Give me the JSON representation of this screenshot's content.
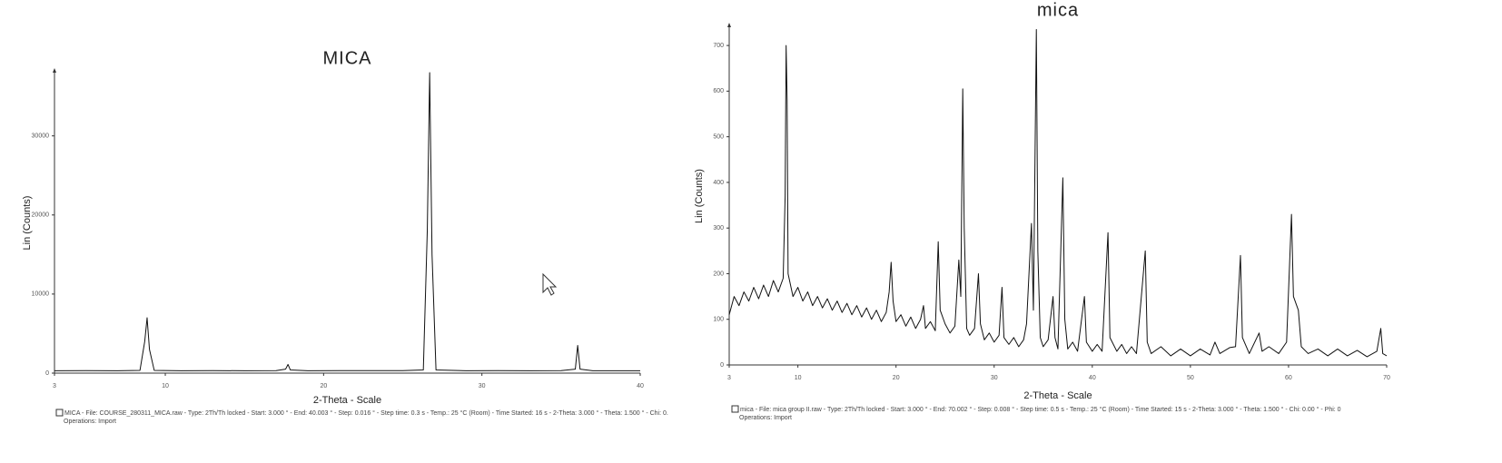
{
  "chart_data": [
    {
      "type": "line",
      "title": "MICA",
      "x_label": "2-Theta - Scale",
      "y_label": "Lin (Counts)",
      "caption": [
        "MICA - File: COURSE_280311_MICA.raw - Type: 2Th/Th locked - Start: 3.000 ° - End: 40.003 ° - Step: 0.016 ° - Step time: 0.3 s - Temp.: 25 °C (Room) - Time Started: 16 s - 2-Theta: 3.000 ° - Theta: 1.500 ° - Chi: 0.",
        "Operations: Import"
      ],
      "xlim": [
        3,
        40
      ],
      "xticks": [
        3,
        10,
        20,
        30,
        40
      ],
      "ylim": [
        0,
        38000
      ],
      "yticks": [
        0,
        10000,
        20000,
        30000
      ],
      "color": "#111111",
      "x": [
        3,
        5,
        7,
        8.4,
        8.7,
        8.85,
        9.0,
        9.3,
        11,
        13,
        15,
        17,
        17.6,
        17.75,
        17.9,
        19,
        21,
        23,
        25,
        26.3,
        26.55,
        26.7,
        26.85,
        27.1,
        29,
        31,
        33,
        35,
        35.9,
        36.05,
        36.2,
        37,
        39,
        40
      ],
      "values": [
        300,
        320,
        300,
        350,
        4000,
        7000,
        3000,
        350,
        300,
        320,
        300,
        320,
        500,
        1100,
        400,
        300,
        320,
        310,
        320,
        400,
        18000,
        38000,
        15000,
        400,
        300,
        320,
        300,
        310,
        500,
        3500,
        500,
        300,
        300,
        300
      ]
    },
    {
      "type": "line",
      "title": "mica",
      "x_label": "2-Theta - Scale",
      "y_label": "Lin (Counts)",
      "caption": [
        "mica - File: mica group II.raw - Type: 2Th/Th locked - Start: 3.000 ° - End: 70.002 ° - Step: 0.008 ° - Step time: 0.5 s - Temp.: 25 °C (Room) - Time Started: 15 s - 2-Theta: 3.000 ° - Theta: 1.500 ° - Chi: 0.00 ° - Phi: 0",
        "Operations: Import"
      ],
      "xlim": [
        3,
        70
      ],
      "xticks": [
        3,
        10,
        20,
        30,
        40,
        50,
        60,
        70
      ],
      "ylim": [
        0,
        740
      ],
      "yticks": [
        0,
        100,
        200,
        300,
        400,
        500,
        600,
        700
      ],
      "color": "#111111",
      "x": [
        3,
        3.5,
        4,
        4.5,
        5,
        5.5,
        6,
        6.5,
        7,
        7.5,
        8,
        8.5,
        8.7,
        8.8,
        8.9,
        9.0,
        9.5,
        10,
        10.5,
        11,
        11.5,
        12,
        12.5,
        13,
        13.5,
        14,
        14.5,
        15,
        15.5,
        16,
        16.5,
        17,
        17.5,
        18,
        18.5,
        19,
        19.3,
        19.5,
        19.7,
        20,
        20.5,
        21,
        21.5,
        22,
        22.5,
        22.8,
        23,
        23.5,
        24,
        24.3,
        24.5,
        25,
        25.5,
        26,
        26.4,
        26.6,
        26.8,
        26.95,
        27.2,
        27.5,
        28,
        28.4,
        28.6,
        29,
        29.5,
        30,
        30.5,
        30.8,
        31,
        31.5,
        32,
        32.5,
        33,
        33.3,
        33.8,
        34.0,
        34.3,
        34.45,
        34.7,
        35,
        35.5,
        36,
        36.2,
        36.5,
        37.0,
        37.2,
        37.5,
        38,
        38.5,
        39.2,
        39.4,
        40,
        40.5,
        41,
        41.6,
        41.8,
        42.5,
        43,
        43.5,
        44,
        44.5,
        45.4,
        45.6,
        46,
        47,
        48,
        49,
        50,
        51,
        52,
        52.5,
        53,
        54,
        54.6,
        55.1,
        55.3,
        56,
        57,
        57.3,
        58,
        59,
        59.8,
        60.3,
        60.5,
        61.0,
        61.3,
        62,
        63,
        64,
        65,
        66,
        67,
        68,
        69,
        69.4,
        69.6,
        70
      ],
      "values": [
        110,
        150,
        130,
        160,
        140,
        170,
        145,
        175,
        150,
        185,
        160,
        190,
        370,
        700,
        580,
        200,
        150,
        170,
        140,
        160,
        130,
        150,
        125,
        145,
        120,
        140,
        115,
        135,
        110,
        130,
        105,
        125,
        100,
        120,
        95,
        115,
        160,
        225,
        140,
        95,
        110,
        85,
        105,
        80,
        100,
        130,
        80,
        95,
        75,
        270,
        120,
        90,
        70,
        85,
        230,
        150,
        605,
        300,
        80,
        65,
        80,
        200,
        90,
        55,
        70,
        50,
        65,
        170,
        60,
        45,
        60,
        40,
        55,
        90,
        310,
        120,
        735,
        250,
        60,
        40,
        55,
        150,
        60,
        35,
        410,
        100,
        35,
        50,
        30,
        150,
        50,
        30,
        45,
        30,
        290,
        60,
        30,
        45,
        25,
        40,
        25,
        250,
        50,
        25,
        40,
        20,
        35,
        20,
        35,
        22,
        50,
        25,
        38,
        40,
        240,
        60,
        25,
        70,
        30,
        40,
        25,
        50,
        330,
        150,
        120,
        40,
        25,
        35,
        20,
        35,
        20,
        32,
        18,
        30,
        80,
        25,
        20
      ]
    }
  ]
}
